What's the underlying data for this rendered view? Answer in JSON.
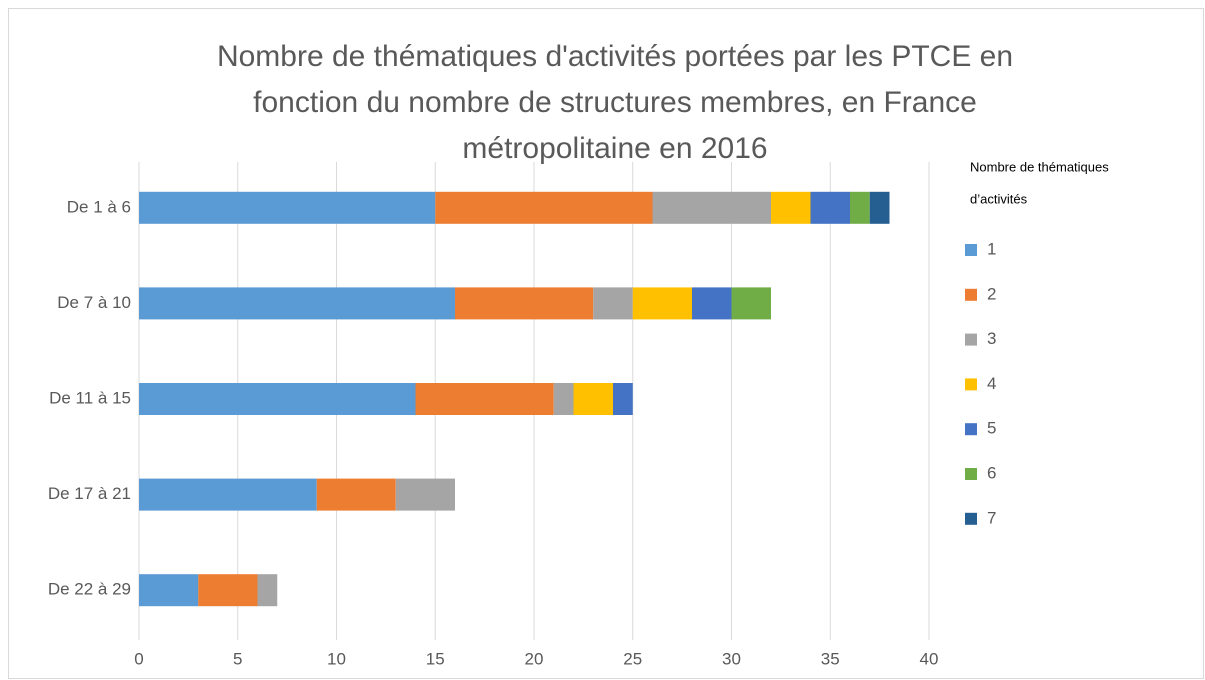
{
  "chart_data": {
    "type": "bar",
    "orientation": "horizontal",
    "stacked": true,
    "title": [
      "Nombre de thématiques d'activités portées par les PTCE en",
      "fonction du nombre de structures membres, en France",
      "métropolitaine en 2016"
    ],
    "legend_title": [
      "Nombre de thématiques",
      "d’activités"
    ],
    "legend": "right",
    "categories": [
      "De 1 à 6",
      "De 7 à 10",
      "De 11 à 15",
      "De 17 à 21",
      "De 22 à 29"
    ],
    "series": [
      {
        "name": "1",
        "color": "#5b9bd5",
        "values": [
          15,
          16,
          14,
          9,
          3
        ]
      },
      {
        "name": "2",
        "color": "#ed7d31",
        "values": [
          11,
          7,
          7,
          4,
          3
        ]
      },
      {
        "name": "3",
        "color": "#a5a5a5",
        "values": [
          6,
          2,
          1,
          3,
          1
        ]
      },
      {
        "name": "4",
        "color": "#ffc000",
        "values": [
          2,
          3,
          2,
          0,
          0
        ]
      },
      {
        "name": "5",
        "color": "#4472c4",
        "values": [
          2,
          2,
          1,
          0,
          0
        ]
      },
      {
        "name": "6",
        "color": "#70ad47",
        "values": [
          1,
          2,
          0,
          0,
          0
        ]
      },
      {
        "name": "7",
        "color": "#255e91",
        "values": [
          1,
          0,
          0,
          0,
          0
        ]
      }
    ],
    "xlim": [
      0,
      40
    ],
    "xticks": [
      0,
      5,
      10,
      15,
      20,
      25,
      30,
      35,
      40
    ],
    "grid": true
  }
}
